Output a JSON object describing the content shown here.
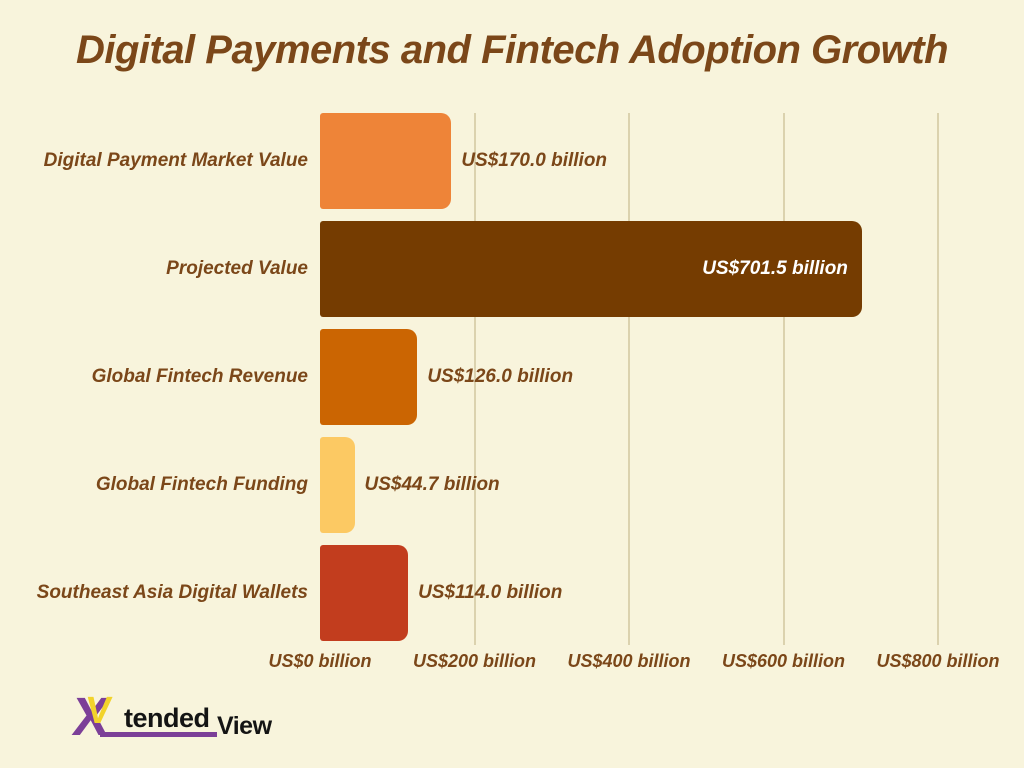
{
  "title": "Digital Payments and Fintech Adoption Growth",
  "chart_data": {
    "type": "bar",
    "orientation": "horizontal",
    "title": "Digital Payments and Fintech Adoption Growth",
    "categories": [
      "Digital Payment Market Value",
      "Projected Value",
      "Global Fintech Revenue",
      "Global Fintech Funding",
      "Southeast Asia Digital Wallets"
    ],
    "values": [
      170.0,
      701.5,
      126.0,
      44.7,
      114.0
    ],
    "value_labels": [
      "US$170.0 billion",
      "US$701.5 billion",
      "US$126.0 billion",
      "US$44.7 billion",
      "US$114.0 billion"
    ],
    "value_label_inside": [
      false,
      true,
      false,
      false,
      false
    ],
    "unit": "US$ billion",
    "xlim": [
      0,
      800
    ],
    "x_ticks": [
      0,
      200,
      400,
      600,
      800
    ],
    "x_tick_labels": [
      "US$0 billion",
      "US$200 billion",
      "US$400 billion",
      "US$600 billion",
      "US$800 billion"
    ],
    "bar_colors": [
      "#EE8438",
      "#753C01",
      "#CB6502",
      "#FCC963",
      "#C23D1E"
    ],
    "grid": "vertical gridlines at x ticks, no axis lines",
    "legend": "none"
  },
  "colors": {
    "background": "#F8F4DC",
    "text_brown": "#7B4719",
    "gridline": "#DBD2AE",
    "inside_value_label": "#FFFFFF",
    "logo_purple": "#7C3F98",
    "logo_yellow": "#F2D32B",
    "logo_black": "#141414"
  },
  "logo": {
    "name": "XtendedView",
    "x": "X",
    "v": "V",
    "tended": "tended",
    "view": "View"
  }
}
